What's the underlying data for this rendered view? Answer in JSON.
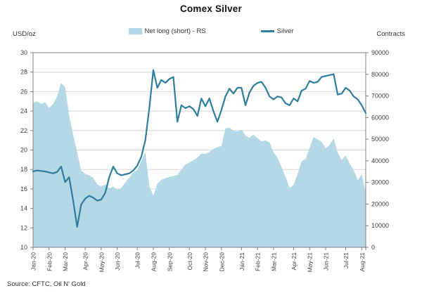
{
  "header": {
    "title": "Comex Silver"
  },
  "axes": {
    "left_unit": "USD/oz",
    "right_unit": "Contracts"
  },
  "source": "Source: CFTC, Oil N' Gold",
  "colors": {
    "area": "#b4d8e4",
    "line": "#2e7d9d",
    "grid": "#d6d6d6",
    "axis": "#7f7f7f",
    "text": "#404040",
    "background": "#ffffff"
  },
  "chart_data": {
    "type": "line",
    "title": "Comex Silver",
    "xlabel": "",
    "grid": true,
    "legend_position": "top-center",
    "x_tick_labels": [
      "Jan-20",
      "Feb-20",
      "Mar-20",
      "Apr-20",
      "May-20",
      "Jun-20",
      "Jul-20",
      "Aug-20",
      "Sep-20",
      "Oct-20",
      "Nov-20",
      "Dec-20",
      "Jan-21",
      "Feb-21",
      "Mar-21",
      "Apr-21",
      "May-21",
      "Jun-21",
      "Jul-21",
      "Aug-21"
    ],
    "x_tick_indices": [
      0,
      4,
      8,
      13,
      17,
      21,
      26,
      30,
      34,
      39,
      43,
      47,
      52,
      56,
      60,
      65,
      69,
      73,
      78,
      82
    ],
    "left_axis": {
      "label": "USD/oz",
      "min": 10,
      "max": 30,
      "step": 2
    },
    "right_axis": {
      "label": "Contracts",
      "min": 0,
      "max": 90000,
      "step": 10000
    },
    "series": [
      {
        "name": "Net long (short) - RS",
        "type": "area",
        "axis": "right",
        "color": "#b4d8e4",
        "values": [
          66900,
          67500,
          66400,
          67000,
          64500,
          66200,
          69900,
          76000,
          74000,
          61000,
          52000,
          44000,
          35500,
          34000,
          33300,
          32300,
          29000,
          28300,
          29000,
          27400,
          28000,
          26600,
          27400,
          30000,
          32300,
          34700,
          35700,
          40100,
          44000,
          28300,
          23800,
          29500,
          31200,
          32000,
          32500,
          33000,
          33500,
          36000,
          38300,
          39200,
          40300,
          41500,
          43300,
          43200,
          44100,
          45500,
          46400,
          46800,
          55000,
          55300,
          54000,
          53500,
          54400,
          51800,
          50600,
          52100,
          50400,
          49000,
          49500,
          48600,
          44000,
          41500,
          37100,
          32500,
          27500,
          28800,
          33900,
          39800,
          40800,
          46000,
          50900,
          49900,
          48800,
          45800,
          47300,
          50400,
          43800,
          40400,
          42400,
          38800,
          35600,
          31000,
          33800,
          25200
        ]
      },
      {
        "name": "Silver",
        "type": "line",
        "axis": "left",
        "color": "#2e7d9d",
        "values": [
          17.8,
          17.9,
          17.85,
          17.8,
          17.7,
          17.6,
          17.75,
          18.3,
          16.7,
          17.2,
          14.8,
          12.1,
          14.4,
          15.0,
          15.3,
          15.1,
          14.8,
          14.9,
          15.6,
          17.2,
          18.3,
          17.6,
          17.4,
          17.5,
          17.6,
          17.9,
          18.4,
          19.3,
          21.0,
          24.3,
          28.2,
          26.4,
          27.2,
          26.9,
          27.3,
          27.5,
          22.9,
          24.6,
          24.3,
          24.5,
          24.2,
          23.5,
          25.3,
          24.5,
          25.3,
          24.0,
          22.9,
          24.1,
          25.5,
          26.3,
          25.8,
          26.4,
          26.4,
          24.6,
          25.9,
          26.6,
          26.9,
          27.0,
          26.4,
          25.5,
          25.2,
          25.5,
          25.4,
          24.8,
          24.6,
          25.3,
          25.0,
          26.1,
          26.3,
          27.1,
          26.9,
          27.0,
          27.5,
          27.6,
          27.7,
          27.8,
          25.7,
          25.8,
          26.4,
          26.1,
          25.5,
          25.2,
          24.6,
          23.8
        ]
      }
    ]
  }
}
